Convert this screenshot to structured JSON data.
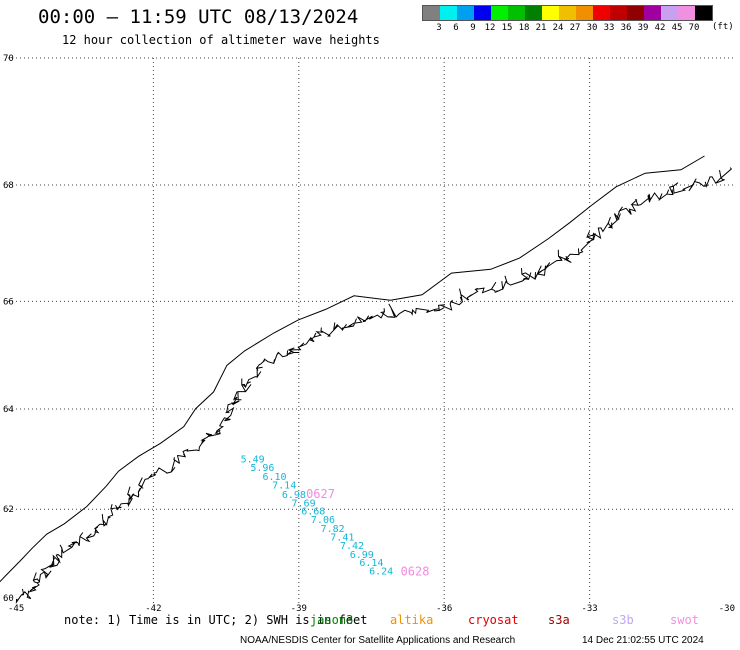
{
  "header": {
    "title": "00:00 – 11:59 UTC 08/13/2024",
    "subtitle": "12 hour collection of altimeter wave heights"
  },
  "legend": {
    "colors": [
      "#808080",
      "#00f0f0",
      "#00a0f0",
      "#0000f0",
      "#00f000",
      "#00c000",
      "#008000",
      "#ffff00",
      "#f0c000",
      "#f09000",
      "#f00000",
      "#c00000",
      "#900000",
      "#a000a0",
      "#c8a0f0",
      "#f090e0",
      "#000000"
    ],
    "labels": [
      "3",
      "6",
      "9",
      "12",
      "15",
      "18",
      "21",
      "24",
      "27",
      "30",
      "33",
      "36",
      "39",
      "42",
      "45",
      "70"
    ],
    "unit": "(ft)"
  },
  "map": {
    "lat_range": [
      60,
      70
    ],
    "lon_range": [
      -45,
      -30
    ],
    "lat_labels": [
      "70",
      "68",
      "66",
      "64",
      "62",
      "60"
    ],
    "lon_labels": [
      "-45",
      "-42",
      "-39",
      "-36",
      "-33",
      "-30"
    ],
    "coastline": "greenland-east-coast"
  },
  "wave_heights": [
    {
      "value": "5.49",
      "lat": 62.95,
      "lon": -40.2
    },
    {
      "value": "5.96",
      "lat": 62.78,
      "lon": -40.0
    },
    {
      "value": "6.10",
      "lat": 62.6,
      "lon": -39.75
    },
    {
      "value": "7.14",
      "lat": 62.42,
      "lon": -39.55
    },
    {
      "value": "6.98",
      "lat": 62.23,
      "lon": -39.35
    },
    {
      "value": "7.69",
      "lat": 62.06,
      "lon": -39.15
    },
    {
      "value": "6.68",
      "lat": 61.89,
      "lon": -38.95
    },
    {
      "value": "7.06",
      "lat": 61.71,
      "lon": -38.75
    },
    {
      "value": "7.82",
      "lat": 61.53,
      "lon": -38.55
    },
    {
      "value": "7.41",
      "lat": 61.35,
      "lon": -38.35
    },
    {
      "value": "7.42",
      "lat": 61.17,
      "lon": -38.15
    },
    {
      "value": "6.99",
      "lat": 60.98,
      "lon": -37.95
    },
    {
      "value": "6.14",
      "lat": 60.8,
      "lon": -37.75
    },
    {
      "value": "6.24",
      "lat": 60.62,
      "lon": -37.55
    }
  ],
  "passes": [
    {
      "label": "0627",
      "lat": 62.23,
      "lon": -38.85
    },
    {
      "label": "0628",
      "lat": 60.6,
      "lon": -36.9
    }
  ],
  "footer": {
    "note": "note: 1) Time is in UTC; 2) SWH is in feet",
    "satellites": [
      {
        "name": "jason3",
        "color": "#008000"
      },
      {
        "name": "altika",
        "color": "#f09000"
      },
      {
        "name": "cryosat",
        "color": "#e00000"
      },
      {
        "name": "s3a",
        "color": "#a00000"
      },
      {
        "name": "s3b",
        "color": "#c0a8f0"
      },
      {
        "name": "swot",
        "color": "#f090e0"
      }
    ],
    "credit": "NOAA/NESDIS Center for Satellite Applications and Research",
    "generated": "14 Dec 21:02:55 UTC 2024"
  }
}
